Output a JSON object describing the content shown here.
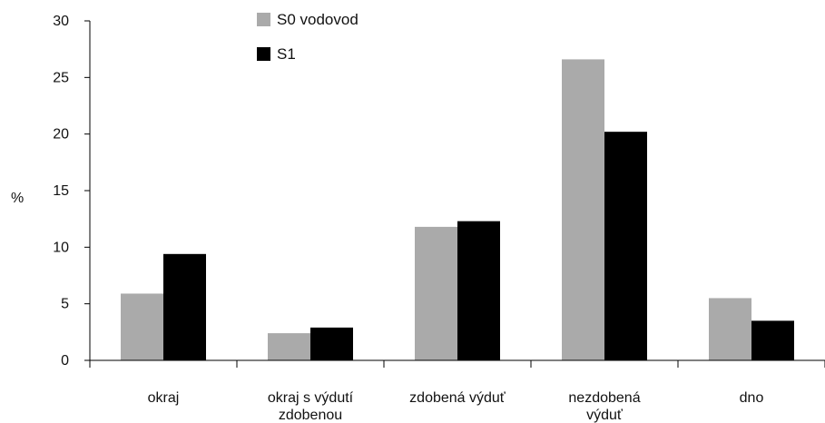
{
  "chart_data": {
    "type": "bar",
    "title": "",
    "xlabel": "",
    "ylabel": "%",
    "ylim": [
      0,
      30
    ],
    "yticks": [
      0,
      5,
      10,
      15,
      20,
      25,
      30
    ],
    "grid": false,
    "legend_position": "top-center",
    "categories": [
      [
        "okraj"
      ],
      [
        "okraj s výdutí",
        "zdobenou"
      ],
      [
        "zdobená výduť"
      ],
      [
        "nezdobená",
        "výduť"
      ],
      [
        "dno"
      ]
    ],
    "series": [
      {
        "name": "S0 vodovod",
        "color": "#aaaaaa",
        "values": [
          5.9,
          2.4,
          11.8,
          26.6,
          5.5
        ]
      },
      {
        "name": "S1",
        "color": "#000000",
        "values": [
          9.4,
          2.9,
          12.3,
          20.2,
          3.5
        ]
      }
    ]
  }
}
